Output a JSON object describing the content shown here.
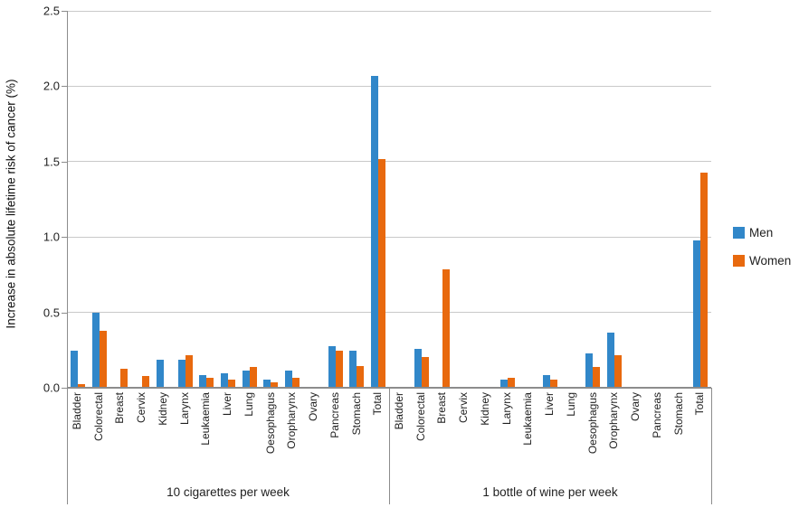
{
  "chart_data": {
    "type": "bar",
    "title": "",
    "ylabel": "Increase in absolute lifetime risk of cancer (%)",
    "ylim": [
      0,
      2.5
    ],
    "yticks": [
      "0.0",
      "0.5",
      "1.0",
      "1.5",
      "2.0",
      "2.5"
    ],
    "grid": "horizontal",
    "legend_position": "right",
    "categories": [
      "Bladder",
      "Colorectal",
      "Breast",
      "Cervix",
      "Kidney",
      "Larynx",
      "Leukaemia",
      "Liver",
      "Lung",
      "Oesophagus",
      "Oropharynx",
      "Ovary",
      "Pancreas",
      "Stomach",
      "Total"
    ],
    "groups": [
      {
        "label": "10 cigarettes per week",
        "series": [
          {
            "name": "Men",
            "values": [
              0.24,
              0.49,
              0,
              0,
              0.18,
              0.18,
              0.08,
              0.09,
              0.11,
              0.05,
              0.11,
              0,
              0.27,
              0.24,
              2.06
            ]
          },
          {
            "name": "Women",
            "values": [
              0.02,
              0.37,
              0.12,
              0.07,
              0,
              0.21,
              0.06,
              0.05,
              0.13,
              0.03,
              0.06,
              0,
              0.24,
              0.14,
              1.51
            ]
          }
        ]
      },
      {
        "label": "1 bottle of wine per week",
        "series": [
          {
            "name": "Men",
            "values": [
              0,
              0.25,
              0,
              0,
              0,
              0.05,
              0,
              0.08,
              0,
              0.22,
              0.36,
              0,
              0,
              0,
              0.97
            ]
          },
          {
            "name": "Women",
            "values": [
              0,
              0.2,
              0.78,
              0,
              0,
              0.06,
              0,
              0.05,
              0,
              0.13,
              0.21,
              0,
              0,
              0,
              1.42
            ]
          }
        ]
      }
    ],
    "legend": [
      {
        "label": "Men",
        "color": "#3187C9"
      },
      {
        "label": "Women",
        "color": "#E8690E"
      }
    ]
  },
  "style_colors": {
    "men": "#3187C9",
    "women": "#E8690E",
    "gridline": "#c9c9c9",
    "axis": "#8c8c8c",
    "text": "#1f1f1f"
  }
}
